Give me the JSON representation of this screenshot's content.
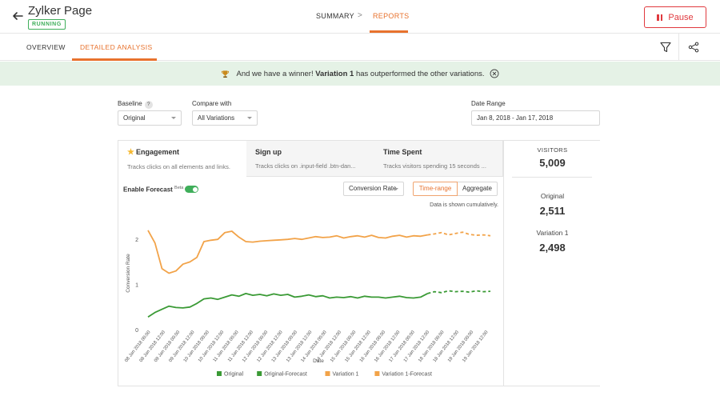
{
  "header": {
    "title": "Zylker Page",
    "status": "RUNNING",
    "tabs": [
      {
        "label": "SUMMARY",
        "active": false
      },
      {
        "label": "REPORTS",
        "active": true
      }
    ],
    "tab_separator": ">",
    "pause_label": "Pause"
  },
  "subnav": {
    "tabs": [
      {
        "label": "OVERVIEW",
        "active": false
      },
      {
        "label": "DETAILED ANALYSIS",
        "active": true
      }
    ]
  },
  "banner": {
    "prefix": "And we have a winner!",
    "winner": "Variation 1",
    "suffix": "has outperformed the other variations."
  },
  "filters": {
    "baseline_label": "Baseline",
    "baseline_help": "?",
    "baseline_value": "Original",
    "compare_label": "Compare with",
    "compare_value": "All Variations",
    "date_label": "Date Range",
    "date_value": "Jan 8, 2018 - Jan 17, 2018"
  },
  "goals": [
    {
      "title": "Engagement",
      "desc": "Tracks clicks on all elements and links.",
      "active": true
    },
    {
      "title": "Sign up",
      "desc": "Tracks clicks on .input-field .btn-dan...",
      "active": false
    },
    {
      "title": "Time Spent",
      "desc": "Tracks visitors spending 15 seconds ...",
      "active": false
    }
  ],
  "stats": {
    "visitors_label": "VISITORS",
    "visitors": "5,009",
    "original_label": "Original",
    "original": "2,511",
    "variation_label": "Variation 1",
    "variation": "2,498"
  },
  "controls": {
    "forecast_label": "Enable Forecast",
    "forecast_beta": "Beta",
    "forecast_enabled": true,
    "metric": "Conversion Rate",
    "mode_time": "Time-range",
    "mode_aggregate": "Aggregate",
    "note": "Data is shown cumulatively."
  },
  "chart_data": {
    "type": "line",
    "xlabel": "Date",
    "ylabel": "Conversion Rate",
    "ylim": [
      0,
      2.5
    ],
    "y_ticks": [
      0,
      1,
      2
    ],
    "grid": false,
    "legend_position": "bottom",
    "x": [
      "08 Jan 2018 00:00",
      "08 Jan 2018 12:00",
      "09 Jan 2018 00:00",
      "09 Jan 2018 12:00",
      "10 Jan 2018 00:00",
      "10 Jan 2018 12:00",
      "11 Jan 2018 00:00",
      "11 Jan 2018 12:00",
      "12 Jan 2018 00:00",
      "12 Jan 2018 12:00",
      "13 Jan 2018 00:00",
      "13 Jan 2018 12:00",
      "14 Jan 2018 00:00",
      "14 Jan 2018 12:00",
      "15 Jan 2018 00:00",
      "15 Jan 2018 12:00",
      "16 Jan 2018 00:00",
      "16 Jan 2018 12:00",
      "17 Jan 2018 00:00",
      "17 Jan 2018 12:00",
      "18 Jan 2018 00:00",
      "18 Jan 2018 12:00",
      "19 Jan 2018 00:00",
      "19 Jan 2018 12:00"
    ],
    "series": [
      {
        "name": "Original",
        "color": "#3a9a35",
        "dashed": false,
        "points": [
          [
            0,
            0.28
          ],
          [
            1,
            0.38
          ],
          [
            2,
            0.45
          ],
          [
            3,
            0.52
          ],
          [
            4,
            0.49
          ],
          [
            5,
            0.48
          ],
          [
            6,
            0.5
          ],
          [
            7,
            0.58
          ],
          [
            8,
            0.68
          ],
          [
            9,
            0.7
          ],
          [
            10,
            0.67
          ],
          [
            11,
            0.72
          ],
          [
            12,
            0.77
          ],
          [
            13,
            0.74
          ],
          [
            14,
            0.8
          ],
          [
            15,
            0.76
          ],
          [
            16,
            0.78
          ],
          [
            17,
            0.75
          ],
          [
            18,
            0.79
          ],
          [
            19,
            0.76
          ],
          [
            20,
            0.78
          ],
          [
            21,
            0.72
          ],
          [
            22,
            0.74
          ],
          [
            23,
            0.77
          ],
          [
            24,
            0.73
          ],
          [
            25,
            0.75
          ],
          [
            26,
            0.7
          ],
          [
            27,
            0.72
          ],
          [
            28,
            0.71
          ],
          [
            29,
            0.73
          ],
          [
            30,
            0.7
          ],
          [
            31,
            0.74
          ],
          [
            32,
            0.72
          ],
          [
            33,
            0.72
          ],
          [
            34,
            0.7
          ],
          [
            35,
            0.72
          ],
          [
            36,
            0.74
          ],
          [
            37,
            0.71
          ],
          [
            38,
            0.7
          ],
          [
            39,
            0.72
          ],
          [
            40,
            0.8
          ]
        ]
      },
      {
        "name": "Original-Forecast",
        "color": "#3a9a35",
        "dashed": true,
        "points": [
          [
            40,
            0.8
          ],
          [
            41,
            0.84
          ],
          [
            42,
            0.82
          ],
          [
            43,
            0.86
          ],
          [
            44,
            0.84
          ],
          [
            45,
            0.85
          ],
          [
            46,
            0.83
          ],
          [
            47,
            0.86
          ],
          [
            48,
            0.84
          ],
          [
            49,
            0.85
          ]
        ]
      },
      {
        "name": "Variation 1",
        "color": "#f2a349",
        "dashed": false,
        "points": [
          [
            0,
            2.2
          ],
          [
            1,
            1.92
          ],
          [
            2,
            1.35
          ],
          [
            3,
            1.25
          ],
          [
            4,
            1.3
          ],
          [
            5,
            1.45
          ],
          [
            6,
            1.5
          ],
          [
            7,
            1.6
          ],
          [
            8,
            1.95
          ],
          [
            9,
            1.98
          ],
          [
            10,
            2.0
          ],
          [
            11,
            2.15
          ],
          [
            12,
            2.18
          ],
          [
            13,
            2.05
          ],
          [
            14,
            1.95
          ],
          [
            15,
            1.94
          ],
          [
            16,
            1.96
          ],
          [
            17,
            1.97
          ],
          [
            18,
            1.98
          ],
          [
            19,
            1.99
          ],
          [
            20,
            2.0
          ],
          [
            21,
            2.02
          ],
          [
            22,
            2.0
          ],
          [
            23,
            2.03
          ],
          [
            24,
            2.06
          ],
          [
            25,
            2.04
          ],
          [
            26,
            2.05
          ],
          [
            27,
            2.08
          ],
          [
            28,
            2.03
          ],
          [
            29,
            2.06
          ],
          [
            30,
            2.08
          ],
          [
            31,
            2.05
          ],
          [
            32,
            2.09
          ],
          [
            33,
            2.04
          ],
          [
            34,
            2.03
          ],
          [
            35,
            2.07
          ],
          [
            36,
            2.09
          ],
          [
            37,
            2.05
          ],
          [
            38,
            2.08
          ],
          [
            39,
            2.07
          ],
          [
            40,
            2.1
          ]
        ]
      },
      {
        "name": "Variation 1-Forecast",
        "color": "#f2a349",
        "dashed": true,
        "points": [
          [
            40,
            2.1
          ],
          [
            41,
            2.12
          ],
          [
            42,
            2.15
          ],
          [
            43,
            2.1
          ],
          [
            44,
            2.13
          ],
          [
            45,
            2.16
          ],
          [
            46,
            2.11
          ],
          [
            47,
            2.09
          ],
          [
            48,
            2.1
          ],
          [
            49,
            2.08
          ]
        ]
      }
    ]
  }
}
